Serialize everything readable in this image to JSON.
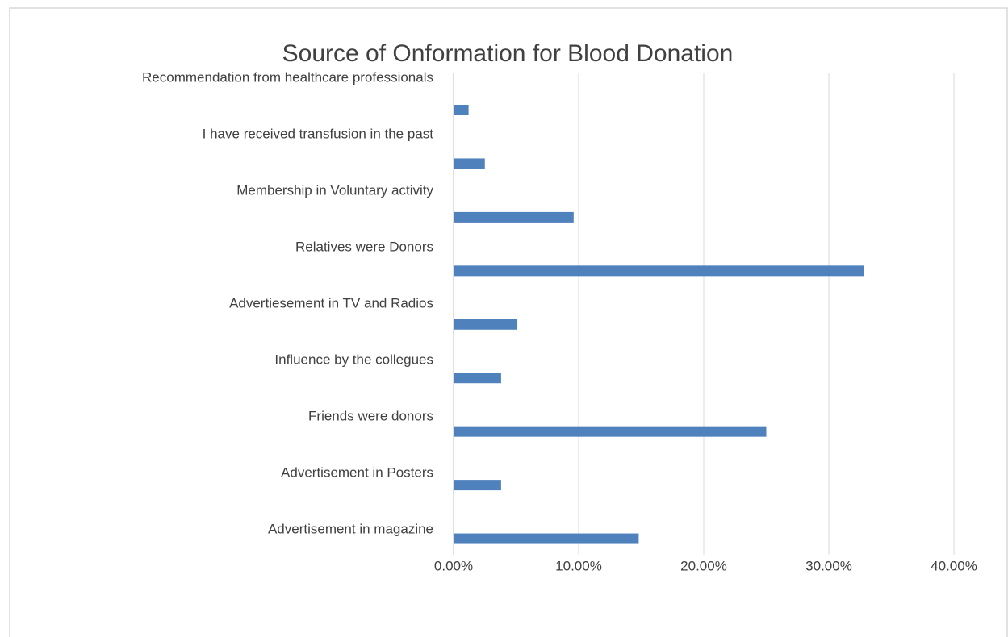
{
  "chart_data": {
    "type": "hbar",
    "title": "Source of Onformation for Blood Donation",
    "categories": [
      "Recommendation from healthcare professionals",
      "I have received transfusion in the past",
      "Membership in Voluntary activity",
      "Relatives were Donors",
      "Advertiesement in TV and Radios",
      "Influence by the collegues",
      "Friends were donors",
      "Advertisement in Posters",
      "Advertisement in magazine"
    ],
    "values": [
      1.2,
      2.5,
      9.6,
      32.8,
      5.1,
      3.8,
      25.0,
      3.8,
      14.8
    ],
    "color": "#4f81bd",
    "xlim": [
      0,
      40
    ],
    "xticks": [
      {
        "value": 0,
        "label": "0.00%"
      },
      {
        "value": 10,
        "label": "10.00%"
      },
      {
        "value": 20,
        "label": "20.00%"
      },
      {
        "value": 30,
        "label": "30.00%"
      },
      {
        "value": 40,
        "label": "40.00%"
      }
    ],
    "grid": true
  }
}
